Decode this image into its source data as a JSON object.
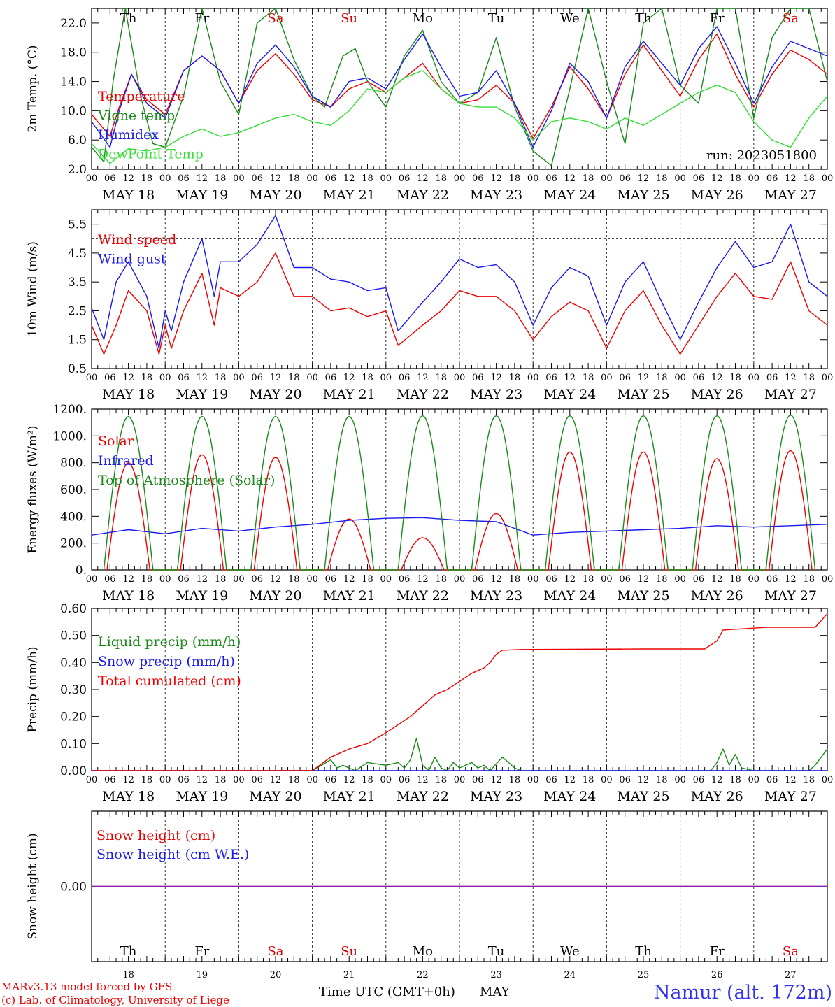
{
  "days": [
    {
      "abbr": "Th",
      "date": "MAY 18",
      "num": "18",
      "color": "#000000"
    },
    {
      "abbr": "Fr",
      "date": "MAY 19",
      "num": "19",
      "color": "#000000"
    },
    {
      "abbr": "Sa",
      "date": "MAY 20",
      "num": "20",
      "color": "#dd0000"
    },
    {
      "abbr": "Su",
      "date": "MAY 21",
      "num": "21",
      "color": "#dd0000"
    },
    {
      "abbr": "Mo",
      "date": "MAY 22",
      "num": "22",
      "color": "#000000"
    },
    {
      "abbr": "Tu",
      "date": "MAY 23",
      "num": "23",
      "color": "#000000"
    },
    {
      "abbr": "We",
      "date": "MAY 24",
      "num": "24",
      "color": "#000000"
    },
    {
      "abbr": "Th",
      "date": "MAY 25",
      "num": "25",
      "color": "#000000"
    },
    {
      "abbr": "Fr",
      "date": "MAY 26",
      "num": "26",
      "color": "#000000"
    },
    {
      "abbr": "Sa",
      "date": "MAY 27",
      "num": "27",
      "color": "#dd0000"
    }
  ],
  "hour_labels": [
    "00",
    "06",
    "12",
    "18"
  ],
  "final_hour_label": "00",
  "footer": {
    "model_line": "MARv3.13 model forced by GFS",
    "credit_line": "(c) Lab. of Climatology, University of Liege",
    "axis_title": "Time UTC (GMT+0h)",
    "month": "MAY",
    "station": "Namur (alt. 172m)"
  },
  "colors": {
    "red": "#ee0000",
    "blue": "#1a1aee",
    "green": "#1a8a1a",
    "lightgreen": "#33dd33",
    "purple": "#8822aa"
  },
  "chart_data": [
    {
      "type": "line",
      "ylabel": "2m Temp. (°C)",
      "ylim": [
        2.0,
        24.0
      ],
      "yticks": [
        "2.0",
        "6.0",
        "10.0",
        "14.0",
        "18.0",
        "22.0"
      ],
      "ytick_values": [
        2,
        6,
        10,
        14,
        18,
        22
      ],
      "run_label": "run: 2023051800",
      "x_unit": "hours since MAY 18 00 UTC",
      "series": [
        {
          "name": "Temperature",
          "color": "red",
          "x": [
            0,
            6,
            9,
            13,
            18,
            24,
            30,
            36,
            42,
            48,
            54,
            60,
            66,
            72,
            78,
            84,
            90,
            96,
            102,
            108,
            114,
            120,
            126,
            132,
            138,
            144,
            150,
            156,
            162,
            168,
            174,
            180,
            186,
            192,
            198,
            204,
            210,
            216,
            222,
            228,
            234,
            240
          ],
          "y": [
            9.5,
            6.5,
            10.5,
            15.0,
            11.5,
            9.5,
            15.5,
            17.5,
            15.5,
            11.0,
            15.5,
            17.8,
            15.0,
            11.5,
            10.5,
            13.0,
            14.0,
            12.5,
            14.5,
            16.5,
            13.0,
            11.0,
            11.5,
            13.5,
            11.0,
            6.2,
            10.5,
            16.0,
            13.0,
            9.0,
            15.0,
            19.0,
            15.5,
            12.0,
            17.0,
            20.5,
            15.0,
            10.5,
            15.0,
            18.3,
            17.0,
            15.0
          ]
        },
        {
          "name": "Vigne temp",
          "color": "green",
          "x": [
            0,
            4,
            7,
            11,
            16,
            20,
            24,
            30,
            36,
            42,
            48,
            54,
            60,
            66,
            72,
            76,
            82,
            86,
            90,
            96,
            102,
            108,
            114,
            120,
            126,
            132,
            138,
            144,
            150,
            156,
            162,
            168,
            174,
            180,
            186,
            192,
            198,
            204,
            210,
            216,
            222,
            228,
            234,
            240
          ],
          "y": [
            5.0,
            3.0,
            14.0,
            25.0,
            12.0,
            5.5,
            5.0,
            12.0,
            24.0,
            14.0,
            9.5,
            22.0,
            24.0,
            17.0,
            12.0,
            10.5,
            17.5,
            18.5,
            14.0,
            10.5,
            17.5,
            21.0,
            14.0,
            11.0,
            12.5,
            20.0,
            10.5,
            4.5,
            2.5,
            13.0,
            24.0,
            14.0,
            5.5,
            22.0,
            24.0,
            13.5,
            11.0,
            24.0,
            24.0,
            9.0,
            20.0,
            24.0,
            24.0,
            14.0
          ]
        },
        {
          "name": "Humidex",
          "color": "blue",
          "x": [
            0,
            6,
            9,
            13,
            18,
            24,
            30,
            36,
            42,
            48,
            54,
            60,
            66,
            72,
            78,
            84,
            90,
            96,
            102,
            108,
            114,
            120,
            126,
            132,
            138,
            144,
            150,
            156,
            162,
            168,
            174,
            180,
            186,
            192,
            198,
            204,
            210,
            216,
            222,
            228,
            234,
            240
          ],
          "y": [
            8.5,
            5.0,
            10.0,
            15.0,
            11.0,
            9.0,
            15.5,
            17.5,
            15.5,
            11.0,
            16.5,
            19.0,
            16.0,
            12.0,
            10.5,
            14.0,
            14.5,
            13.0,
            17.0,
            20.5,
            16.0,
            12.0,
            12.5,
            15.5,
            11.0,
            5.0,
            10.0,
            16.5,
            14.0,
            9.0,
            16.0,
            19.5,
            16.5,
            13.5,
            18.5,
            21.5,
            16.5,
            11.0,
            16.0,
            19.5,
            18.5,
            17.5
          ]
        },
        {
          "name": "DewPoint Temp",
          "color": "lightgreen",
          "x": [
            0,
            6,
            12,
            18,
            24,
            30,
            36,
            42,
            48,
            54,
            60,
            66,
            72,
            78,
            84,
            90,
            96,
            102,
            108,
            114,
            120,
            126,
            132,
            138,
            144,
            150,
            156,
            162,
            168,
            174,
            180,
            186,
            192,
            198,
            204,
            210,
            216,
            222,
            228,
            234,
            240
          ],
          "y": [
            5.5,
            2.8,
            4.8,
            4.5,
            5.0,
            6.5,
            7.5,
            6.5,
            7.0,
            8.0,
            9.0,
            9.5,
            8.5,
            8.0,
            10.0,
            13.0,
            12.5,
            14.5,
            15.5,
            13.0,
            11.0,
            10.5,
            10.5,
            9.0,
            6.0,
            8.5,
            9.0,
            8.5,
            7.5,
            9.0,
            8.0,
            9.5,
            11.0,
            12.5,
            13.5,
            12.5,
            8.5,
            6.0,
            5.0,
            9.0,
            12.0
          ]
        }
      ]
    },
    {
      "type": "line",
      "ylabel": "10m Wind (m/s)",
      "ylim": [
        0.5,
        6.0
      ],
      "yticks": [
        "0.5",
        "1.5",
        "2.5",
        "3.5",
        "4.5",
        "5.5"
      ],
      "ytick_values": [
        0.5,
        1.5,
        2.5,
        3.5,
        4.5,
        5.5
      ],
      "reference_line": 5.0,
      "series": [
        {
          "name": "Wind speed",
          "color": "red",
          "x": [
            0,
            4,
            8,
            12,
            18,
            22,
            24,
            26,
            30,
            36,
            40,
            42,
            48,
            54,
            60,
            66,
            72,
            78,
            84,
            90,
            96,
            100,
            108,
            114,
            120,
            126,
            132,
            138,
            144,
            150,
            156,
            162,
            168,
            174,
            180,
            186,
            192,
            198,
            204,
            210,
            216,
            222,
            228,
            234,
            240
          ],
          "y": [
            2.0,
            1.0,
            2.0,
            3.2,
            2.5,
            1.0,
            2.0,
            1.2,
            2.5,
            3.8,
            2.0,
            3.3,
            3.0,
            3.5,
            4.5,
            3.0,
            3.0,
            2.5,
            2.6,
            2.3,
            2.5,
            1.3,
            2.0,
            2.5,
            3.2,
            3.0,
            3.0,
            2.5,
            1.5,
            2.3,
            2.8,
            2.5,
            1.2,
            2.5,
            3.2,
            2.0,
            1.0,
            2.0,
            3.0,
            3.8,
            3.0,
            2.9,
            4.2,
            2.5,
            2.0
          ]
        },
        {
          "name": "Wind gust",
          "color": "blue",
          "x": [
            0,
            4,
            8,
            12,
            18,
            22,
            24,
            26,
            30,
            36,
            40,
            42,
            48,
            54,
            60,
            66,
            72,
            78,
            84,
            90,
            96,
            100,
            108,
            114,
            120,
            126,
            132,
            138,
            144,
            150,
            156,
            162,
            168,
            174,
            180,
            186,
            192,
            198,
            204,
            210,
            216,
            222,
            228,
            234,
            240
          ],
          "y": [
            2.6,
            1.5,
            3.5,
            4.2,
            3.0,
            1.2,
            2.5,
            1.8,
            3.5,
            5.0,
            3.0,
            4.2,
            4.2,
            4.8,
            5.8,
            4.0,
            4.0,
            3.6,
            3.5,
            3.2,
            3.3,
            1.8,
            2.8,
            3.5,
            4.3,
            4.0,
            4.1,
            3.5,
            2.0,
            3.3,
            4.0,
            3.7,
            2.0,
            3.5,
            4.2,
            2.8,
            1.5,
            2.8,
            4.0,
            4.9,
            4.0,
            4.2,
            5.5,
            3.5,
            3.0
          ]
        }
      ]
    },
    {
      "type": "line",
      "ylabel": "Energy fluxes (W/m²)",
      "ylim": [
        0,
        1200
      ],
      "yticks": [
        "0.",
        "200.",
        "400.",
        "600.",
        "800.",
        "1000.",
        "1200."
      ],
      "ytick_values": [
        0,
        200,
        400,
        600,
        800,
        1000,
        1200
      ],
      "series": [
        {
          "name": "Solar",
          "color": "red",
          "daily_peak": [
            800,
            860,
            840,
            380,
            240,
            420,
            880,
            880,
            830,
            890
          ]
        },
        {
          "name": "Infrared",
          "color": "blue",
          "x": [
            0,
            12,
            24,
            36,
            48,
            60,
            72,
            84,
            96,
            108,
            120,
            132,
            144,
            156,
            168,
            180,
            192,
            204,
            216,
            228,
            240
          ],
          "y": [
            260,
            300,
            270,
            310,
            290,
            320,
            340,
            370,
            385,
            390,
            370,
            360,
            260,
            280,
            290,
            300,
            310,
            330,
            320,
            330,
            340
          ]
        },
        {
          "name": "Top of Atmosphere (Solar)",
          "color": "green",
          "daily_peak": [
            1145,
            1145,
            1145,
            1145,
            1150,
            1150,
            1150,
            1150,
            1150,
            1155
          ]
        }
      ]
    },
    {
      "type": "line",
      "ylabel": "Precip (mm/h)",
      "ylim": [
        0,
        0.6
      ],
      "yticks": [
        "0.00",
        "0.10",
        "0.20",
        "0.30",
        "0.40",
        "0.50",
        "0.60"
      ],
      "ytick_values": [
        0,
        0.1,
        0.2,
        0.3,
        0.4,
        0.5,
        0.6
      ],
      "series": [
        {
          "name": "Liquid precip (mm/h)",
          "color": "green",
          "x": [
            0,
            72,
            78,
            80,
            82,
            86,
            90,
            96,
            100,
            102,
            104,
            106,
            108,
            110,
            112,
            114,
            116,
            118,
            120,
            124,
            126,
            128,
            130,
            134,
            138,
            140,
            202,
            204,
            206,
            208,
            210,
            212,
            216,
            234,
            236,
            238,
            240
          ],
          "y": [
            0,
            0,
            0.04,
            0.01,
            0.02,
            0.0,
            0.03,
            0.02,
            0.03,
            0.01,
            0.04,
            0.12,
            0.02,
            0.0,
            0.05,
            0.01,
            0.0,
            0.03,
            0.01,
            0.03,
            0.01,
            0.02,
            0.0,
            0.05,
            0.01,
            0.0,
            0,
            0.03,
            0.08,
            0.02,
            0.06,
            0.01,
            0,
            0,
            0.02,
            0.05,
            0.08
          ]
        },
        {
          "name": "Snow precip (mm/h)",
          "color": "blue",
          "x": [
            0,
            240
          ],
          "y": [
            0,
            0
          ]
        },
        {
          "name": "Total cumulated (cm)",
          "color": "red",
          "x": [
            0,
            72,
            78,
            84,
            90,
            96,
            100,
            104,
            108,
            112,
            116,
            120,
            124,
            128,
            130,
            132,
            134,
            140,
            180,
            200,
            204,
            206,
            220,
            236,
            240
          ],
          "y": [
            0,
            0,
            0.05,
            0.08,
            0.1,
            0.14,
            0.17,
            0.2,
            0.24,
            0.28,
            0.3,
            0.33,
            0.36,
            0.38,
            0.4,
            0.43,
            0.445,
            0.448,
            0.45,
            0.45,
            0.48,
            0.52,
            0.53,
            0.53,
            0.58
          ]
        }
      ]
    },
    {
      "type": "line",
      "ylabel": "Snow height (cm)",
      "ytick_label": "0.00",
      "series": [
        {
          "name": "Snow height (cm)",
          "color": "red",
          "x": [
            0,
            240
          ],
          "y": [
            0,
            0
          ]
        },
        {
          "name": "Snow height (cm W.E.)",
          "color": "blue",
          "x": [
            0,
            240
          ],
          "y": [
            0,
            0
          ]
        }
      ]
    }
  ]
}
